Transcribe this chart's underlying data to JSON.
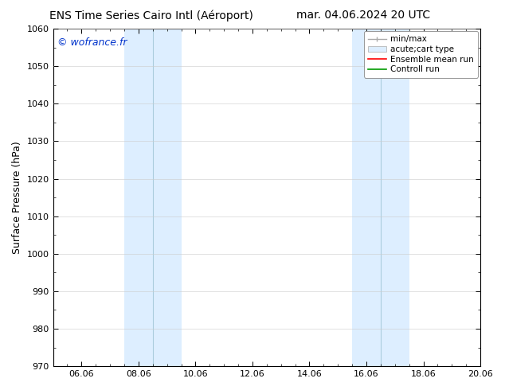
{
  "title_left": "ENS Time Series Cairo Intl (Aéroport)",
  "title_right": "mar. 04.06.2024 20 UTC",
  "ylabel": "Surface Pressure (hPa)",
  "ylim": [
    970,
    1060
  ],
  "yticks": [
    970,
    980,
    990,
    1000,
    1010,
    1020,
    1030,
    1040,
    1050,
    1060
  ],
  "xlim_start_days": 0,
  "xlim_end_days": 15,
  "xtick_labels": [
    "06.06",
    "08.06",
    "10.06",
    "12.06",
    "14.06",
    "16.06",
    "18.06",
    "20.06"
  ],
  "xtick_day_offsets": [
    1,
    3,
    5,
    7,
    9,
    11,
    13,
    15
  ],
  "shaded_regions_days": [
    {
      "x_start": 2.5,
      "x_end": 4.5,
      "color": "#ddeeff"
    },
    {
      "x_start": 10.5,
      "x_end": 12.5,
      "color": "#ddeeff"
    }
  ],
  "shade_divider_days": [
    3.5,
    11.5
  ],
  "watermark_text": "© wofrance.fr",
  "watermark_color": "#0033cc",
  "background_color": "#ffffff",
  "plot_bg_color": "#ffffff",
  "legend_labels": [
    "min/max",
    "acute;cart type",
    "Ensemble mean run",
    "Controll run"
  ],
  "legend_colors": [
    "#aaaaaa",
    "#ddeeff",
    "#ff0000",
    "#009900"
  ],
  "title_fontsize": 10,
  "axis_label_fontsize": 9,
  "tick_fontsize": 8,
  "watermark_fontsize": 9,
  "legend_fontsize": 7.5,
  "grid_color": "#cccccc",
  "spine_color": "#000000"
}
